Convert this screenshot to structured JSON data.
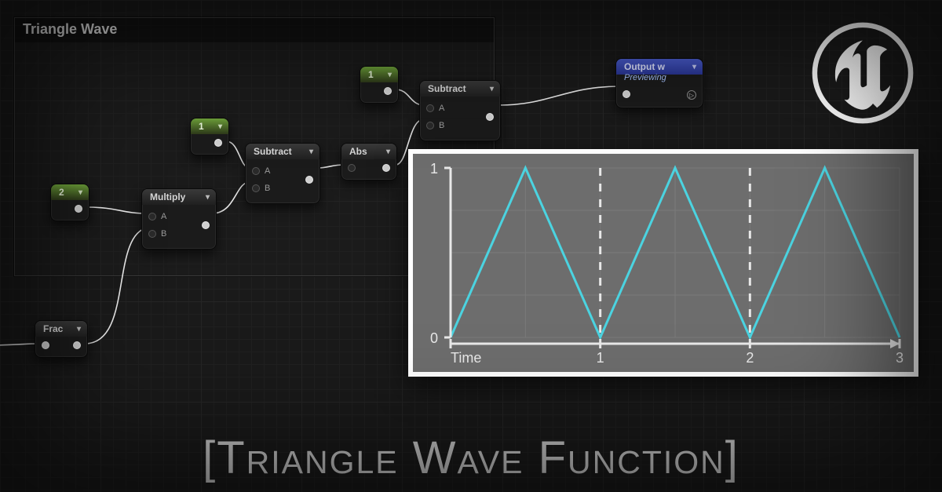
{
  "group": {
    "title": "Triangle Wave"
  },
  "nodes": {
    "frac": {
      "label": "Frac"
    },
    "const2": {
      "label": "2"
    },
    "multiply": {
      "label": "Multiply",
      "inA": "A",
      "inB": "B"
    },
    "const1a": {
      "label": "1"
    },
    "subtract1": {
      "label": "Subtract",
      "inA": "A",
      "inB": "B"
    },
    "abs": {
      "label": "Abs"
    },
    "const1b": {
      "label": "1"
    },
    "subtract2": {
      "label": "Subtract",
      "inA": "A",
      "inB": "B"
    },
    "output": {
      "label": "Output w",
      "sub": "Previewing"
    }
  },
  "chart": {
    "type": "line-triangle-wave",
    "x_label": "Time",
    "x_ticks": [
      "1",
      "2",
      "3"
    ],
    "y_ticks": [
      "0",
      "1"
    ],
    "line_color": "#4bd3e0",
    "line_width": 3,
    "grid_color": "#7a7a7a",
    "axis_color": "#e8e8e8",
    "background": "#6d6d6d",
    "frame_color": "#ffffff",
    "xlim": [
      0,
      3
    ],
    "ylim": [
      0,
      1
    ],
    "dashed_x": [
      1,
      2
    ],
    "points": [
      [
        0,
        0
      ],
      [
        0.5,
        1
      ],
      [
        1,
        0
      ],
      [
        1.5,
        1
      ],
      [
        2,
        0
      ],
      [
        2.5,
        1
      ],
      [
        3,
        0
      ]
    ],
    "label_fontsize": 18
  },
  "title": "[Triangle Wave Function]",
  "colors": {
    "bg": "#1a1a1a",
    "node_bg": "#1b1b1b",
    "wire": "#ffffff",
    "green": "#6ea23a",
    "blue": "#4a5dcf"
  }
}
